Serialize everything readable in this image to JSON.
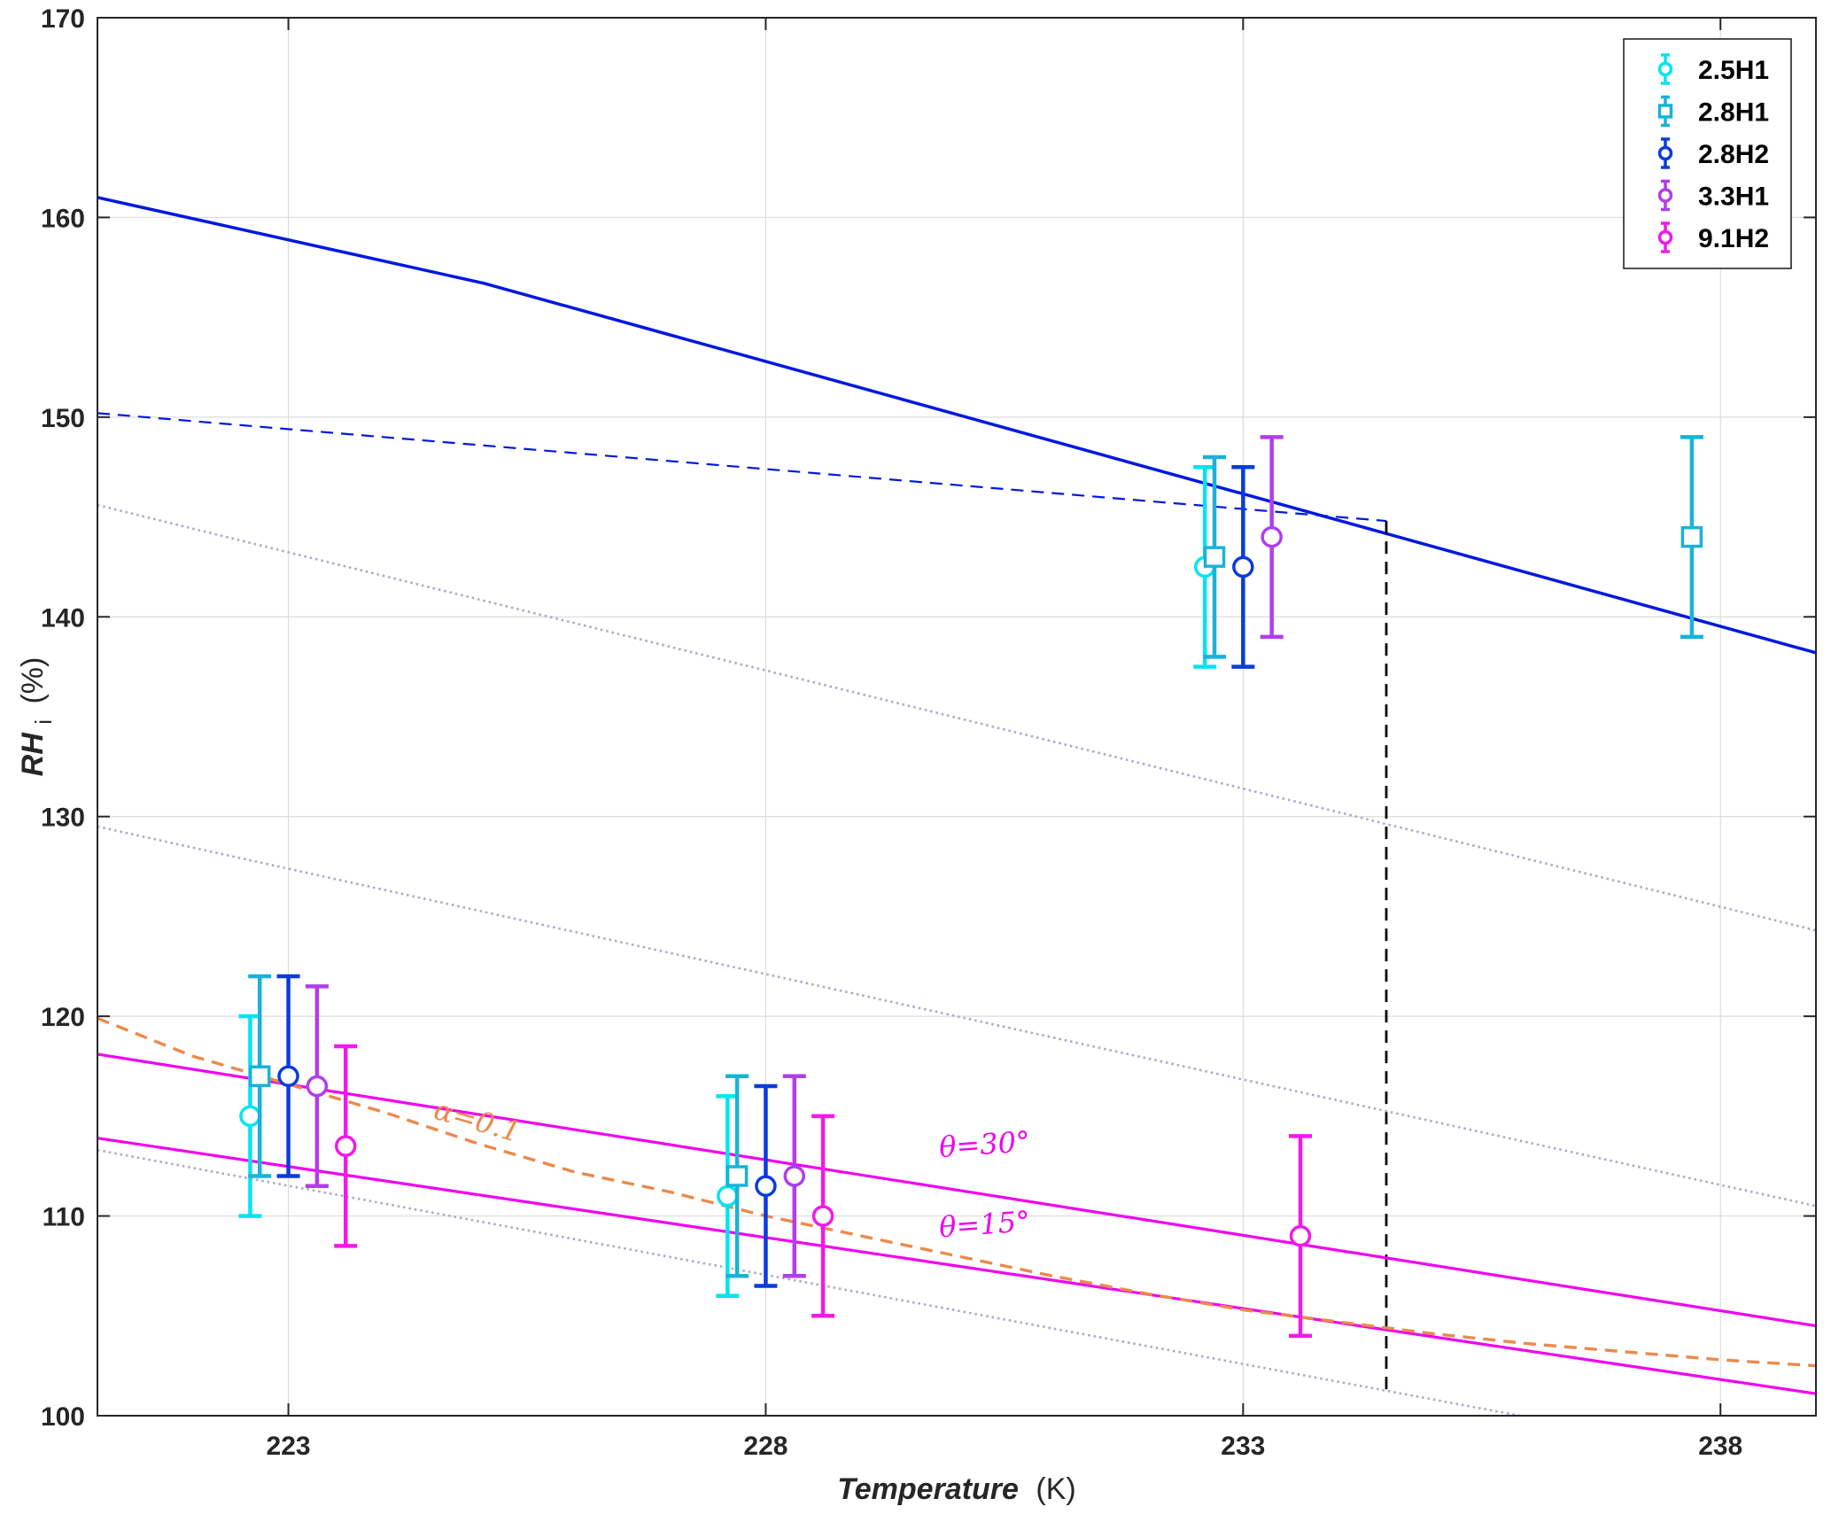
{
  "chart_data": {
    "type": "scatter",
    "xlabel": {
      "main": "Temperature",
      "unit": "(K)"
    },
    "ylabel": {
      "main": "RH",
      "sub": "i",
      "unit": "(%)"
    },
    "xlim": [
      221,
      239
    ],
    "ylim": [
      100,
      170
    ],
    "xticks": [
      223,
      228,
      233,
      238
    ],
    "yticks": [
      100,
      110,
      120,
      130,
      140,
      150,
      160,
      170
    ],
    "grid": true,
    "legend_position": "top-right",
    "series": [
      {
        "name": "2.5H1",
        "color": "#00e5f0",
        "marker": "circle",
        "points": [
          {
            "x": 222.6,
            "y": 115.0,
            "lo": 110.0,
            "hi": 120.0
          },
          {
            "x": 227.6,
            "y": 111.0,
            "lo": 106.0,
            "hi": 116.0
          },
          {
            "x": 232.6,
            "y": 142.5,
            "lo": 137.5,
            "hi": 147.5
          }
        ]
      },
      {
        "name": "2.8H1",
        "color": "#19b2d8",
        "marker": "square",
        "points": [
          {
            "x": 222.7,
            "y": 117.0,
            "lo": 112.0,
            "hi": 122.0
          },
          {
            "x": 227.7,
            "y": 112.0,
            "lo": 107.0,
            "hi": 117.0
          },
          {
            "x": 232.7,
            "y": 143.0,
            "lo": 138.0,
            "hi": 148.0
          },
          {
            "x": 237.7,
            "y": 144.0,
            "lo": 139.0,
            "hi": 149.0
          }
        ]
      },
      {
        "name": "2.8H2",
        "color": "#0a3bdc",
        "marker": "circle",
        "points": [
          {
            "x": 223.0,
            "y": 117.0,
            "lo": 112.0,
            "hi": 122.0
          },
          {
            "x": 228.0,
            "y": 111.5,
            "lo": 106.5,
            "hi": 116.5
          },
          {
            "x": 233.0,
            "y": 142.5,
            "lo": 137.5,
            "hi": 147.5
          }
        ]
      },
      {
        "name": "3.3H1",
        "color": "#b13ee8",
        "marker": "circle",
        "points": [
          {
            "x": 223.3,
            "y": 116.5,
            "lo": 111.5,
            "hi": 121.5
          },
          {
            "x": 228.3,
            "y": 112.0,
            "lo": 107.0,
            "hi": 117.0
          },
          {
            "x": 233.3,
            "y": 144.0,
            "lo": 139.0,
            "hi": 149.0
          }
        ]
      },
      {
        "name": "9.1H2",
        "color": "#f01aea",
        "marker": "circle",
        "points": [
          {
            "x": 223.6,
            "y": 113.5,
            "lo": 108.5,
            "hi": 118.5
          },
          {
            "x": 228.6,
            "y": 110.0,
            "lo": 105.0,
            "hi": 115.0
          },
          {
            "x": 233.6,
            "y": 109.0,
            "lo": 104.0,
            "hi": 114.0
          }
        ]
      }
    ],
    "lines": [
      {
        "color": "#0018e0",
        "style": "solid",
        "width": 3.5,
        "points": [
          [
            221,
            161.0
          ],
          [
            225.05,
            156.7
          ],
          [
            239,
            138.2
          ]
        ]
      },
      {
        "color": "#0018e0",
        "style": "dashed",
        "width": 2.2,
        "points": [
          [
            221,
            150.2
          ],
          [
            234.5,
            144.8
          ]
        ]
      },
      {
        "color": "#000000",
        "style": "dashed",
        "width": 2.8,
        "points": [
          [
            234.5,
            144.8
          ],
          [
            234.5,
            101.3
          ]
        ]
      },
      {
        "color": "#a8a8c8",
        "style": "dotted",
        "width": 2.6,
        "points": [
          [
            221,
            145.6
          ],
          [
            239,
            124.3
          ]
        ]
      },
      {
        "color": "#a8a8c8",
        "style": "dotted",
        "width": 2.6,
        "points": [
          [
            221,
            129.5
          ],
          [
            239,
            110.5
          ]
        ]
      },
      {
        "color": "#a8a8c8",
        "style": "dotted",
        "width": 2.6,
        "points": [
          [
            221,
            113.3
          ],
          [
            235.9,
            100.0
          ]
        ]
      },
      {
        "color": "#f000f0",
        "style": "solid",
        "width": 3.2,
        "points": [
          [
            221,
            118.1
          ],
          [
            239,
            104.5
          ]
        ]
      },
      {
        "color": "#f000f0",
        "style": "solid",
        "width": 3.2,
        "points": [
          [
            221,
            113.9
          ],
          [
            239,
            101.1
          ]
        ]
      },
      {
        "color": "#eb8a4c",
        "style": "dashed",
        "width": 3.4,
        "points": [
          [
            221,
            119.9
          ],
          [
            222.0,
            118.0
          ],
          [
            223.0,
            116.6
          ],
          [
            224.0,
            115.2
          ],
          [
            225.0,
            113.6
          ],
          [
            226.0,
            112.2
          ],
          [
            227.0,
            111.2
          ],
          [
            228.0,
            110.0
          ],
          [
            229.0,
            109.0
          ],
          [
            230.0,
            108.0
          ],
          [
            231.0,
            107.0
          ],
          [
            232.0,
            106.1
          ],
          [
            233.0,
            105.3
          ],
          [
            234.0,
            104.7
          ],
          [
            235.0,
            104.1
          ],
          [
            236.0,
            103.6
          ],
          [
            237.0,
            103.2
          ],
          [
            238.0,
            102.8
          ],
          [
            239.0,
            102.5
          ]
        ]
      }
    ],
    "annotations": [
      {
        "text": "α=0.1",
        "x": 224.95,
        "y": 114.3,
        "color": "#eb8a4c",
        "rotation": 16
      },
      {
        "text": "θ=30°",
        "x": 230.3,
        "y": 113.1,
        "color": "#f000f0",
        "rotation": -4
      },
      {
        "text": "θ=15°",
        "x": 230.3,
        "y": 109.1,
        "color": "#f000f0",
        "rotation": -4
      }
    ]
  }
}
